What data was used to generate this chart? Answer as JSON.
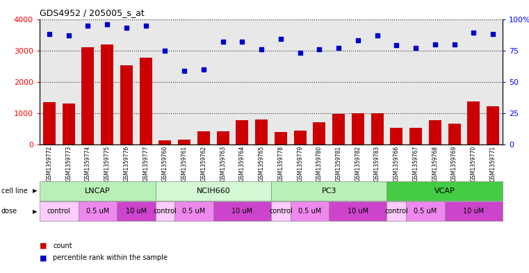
{
  "title": "GDS4952 / 205005_s_at",
  "samples": [
    "GSM1359772",
    "GSM1359773",
    "GSM1359774",
    "GSM1359775",
    "GSM1359776",
    "GSM1359777",
    "GSM1359760",
    "GSM1359761",
    "GSM1359762",
    "GSM1359763",
    "GSM1359764",
    "GSM1359765",
    "GSM1359778",
    "GSM1359779",
    "GSM1359780",
    "GSM1359781",
    "GSM1359782",
    "GSM1359783",
    "GSM1359766",
    "GSM1359767",
    "GSM1359768",
    "GSM1359769",
    "GSM1359770",
    "GSM1359771"
  ],
  "counts": [
    1350,
    1320,
    3100,
    3200,
    2520,
    2780,
    130,
    160,
    420,
    430,
    790,
    800,
    400,
    450,
    710,
    980,
    1010,
    1010,
    540,
    540,
    790,
    670,
    1380,
    1230
  ],
  "percentile_ranks": [
    88,
    87,
    95,
    96,
    93,
    95,
    75,
    59,
    60,
    82,
    82,
    76,
    84,
    73,
    76,
    77,
    83,
    87,
    79,
    77,
    80,
    80,
    89,
    88
  ],
  "cell_lines": [
    {
      "name": "LNCAP",
      "start": 0,
      "end": 6,
      "color": "#b8f0b8"
    },
    {
      "name": "NCIH660",
      "start": 6,
      "end": 12,
      "color": "#d4f7d4"
    },
    {
      "name": "PC3",
      "start": 12,
      "end": 18,
      "color": "#b8f0b8"
    },
    {
      "name": "VCAP",
      "start": 18,
      "end": 24,
      "color": "#44cc44"
    }
  ],
  "doses": [
    {
      "label": "control",
      "start": 0,
      "end": 2,
      "color": "#ffccff"
    },
    {
      "label": "0.5 uM",
      "start": 2,
      "end": 4,
      "color": "#ee88ee"
    },
    {
      "label": "10 uM",
      "start": 4,
      "end": 6,
      "color": "#cc44cc"
    },
    {
      "label": "control",
      "start": 6,
      "end": 7,
      "color": "#ffccff"
    },
    {
      "label": "0.5 uM",
      "start": 7,
      "end": 9,
      "color": "#ee88ee"
    },
    {
      "label": "10 uM",
      "start": 9,
      "end": 12,
      "color": "#cc44cc"
    },
    {
      "label": "control",
      "start": 12,
      "end": 13,
      "color": "#ffccff"
    },
    {
      "label": "0.5 uM",
      "start": 13,
      "end": 15,
      "color": "#ee88ee"
    },
    {
      "label": "10 uM",
      "start": 15,
      "end": 18,
      "color": "#cc44cc"
    },
    {
      "label": "control",
      "start": 18,
      "end": 19,
      "color": "#ffccff"
    },
    {
      "label": "0.5 uM",
      "start": 19,
      "end": 21,
      "color": "#ee88ee"
    },
    {
      "label": "10 uM",
      "start": 21,
      "end": 24,
      "color": "#cc44cc"
    }
  ],
  "bar_color": "#cc0000",
  "dot_color": "#0000cc",
  "ylim_left": [
    0,
    4000
  ],
  "ylim_right": [
    0,
    100
  ],
  "yticks_left": [
    0,
    1000,
    2000,
    3000,
    4000
  ],
  "yticks_right": [
    0,
    25,
    50,
    75,
    100
  ],
  "plot_bg_color": "#e8e8e8",
  "cell_line_label_color": "#333333",
  "dose_label_color": "#333333"
}
